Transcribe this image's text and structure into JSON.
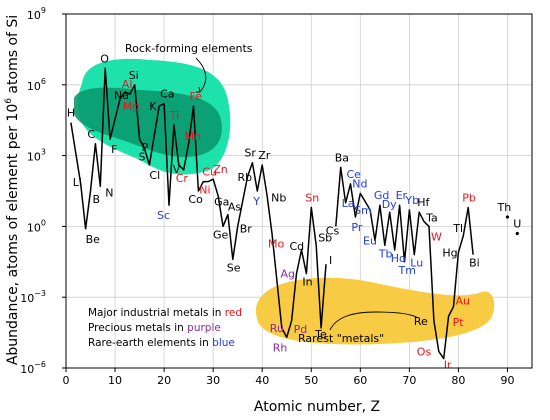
{
  "chart_data": {
    "type": "line",
    "xlabel": "Atomic number, Z",
    "ylabel_parts": {
      "pre": "Abundance, atoms of element per 10",
      "sup": "6",
      "post": " atoms of Si"
    },
    "xlim": [
      0,
      95
    ],
    "ylim_exp": [
      -6,
      9
    ],
    "x_ticks": [
      0,
      10,
      20,
      30,
      40,
      50,
      60,
      70,
      80,
      90
    ],
    "y_ticks": [
      {
        "exp": 9,
        "label": "10",
        "sup": "9"
      },
      {
        "exp": 6,
        "label": "10",
        "sup": "6"
      },
      {
        "exp": 3,
        "label": "10",
        "sup": "3"
      },
      {
        "exp": 0,
        "label": "10",
        "sup": "0"
      },
      {
        "exp": -3,
        "label": "10",
        "sup": "−3"
      },
      {
        "exp": -6,
        "label": "10",
        "sup": "−6"
      }
    ],
    "grid": true,
    "annotations": {
      "rock": "Rock-forming elements",
      "rarest": "Rarest \"metals\""
    },
    "legend": [
      {
        "text": "Major industrial metals in ",
        "highlight": "red",
        "color": "#e8141c"
      },
      {
        "text": "Precious metals in ",
        "highlight": "purple",
        "color": "#8b2a9e"
      },
      {
        "text": "Rare-earth elements in ",
        "highlight": "blue",
        "color": "#1f3fd8"
      }
    ],
    "colors": {
      "black": "#000000",
      "red": "#e8141c",
      "purple": "#8b2a9e",
      "blue": "#1f3fd8",
      "rock_light": "#12e0a6",
      "rock_dark": "#0a9a6e",
      "rarest_fill": "#f7c83a",
      "grid": "#cfcfcf"
    },
    "series": [
      {
        "points": [
          [
            1,
            4.4
          ],
          [
            3,
            1.8
          ],
          [
            4,
            -0.1
          ],
          [
            5,
            1.5
          ],
          [
            6,
            3.5
          ],
          [
            7,
            1.7
          ],
          [
            8,
            6.7
          ],
          [
            9,
            3.7
          ],
          [
            11,
            5.4
          ],
          [
            12,
            5.7
          ],
          [
            13,
            5.6
          ],
          [
            14,
            6.0
          ],
          [
            15,
            3.7
          ],
          [
            16,
            3.3
          ],
          [
            17,
            2.6
          ],
          [
            19,
            5.1
          ],
          [
            20,
            5.2
          ],
          [
            21,
            0.9
          ],
          [
            22,
            4.3
          ],
          [
            23,
            2.6
          ],
          [
            24,
            2.4
          ],
          [
            25,
            3.5
          ],
          [
            26,
            5.1
          ],
          [
            27,
            1.5
          ],
          [
            28,
            1.9
          ],
          [
            29,
            1.9
          ],
          [
            30,
            2.0
          ],
          [
            31,
            1.3
          ],
          [
            32,
            0.0
          ],
          [
            33,
            0.5
          ],
          [
            34,
            -1.4
          ],
          [
            35,
            0.0
          ],
          [
            37,
            2.1
          ],
          [
            38,
            2.7
          ],
          [
            39,
            1.5
          ],
          [
            40,
            2.6
          ],
          [
            41,
            1.3
          ],
          [
            42,
            -0.3
          ],
          [
            44,
            -4.3
          ],
          [
            45,
            -4.7
          ],
          [
            46,
            -4.0
          ],
          [
            47,
            -2.0
          ],
          [
            48,
            -1.0
          ],
          [
            49,
            -2.0
          ],
          [
            50,
            0.8
          ],
          [
            51,
            -0.8
          ],
          [
            52,
            -4.3
          ],
          [
            53,
            -1.6
          ]
        ]
      },
      {
        "points": [
          [
            55,
            0.0
          ],
          [
            56,
            2.5
          ],
          [
            57,
            1.0
          ],
          [
            58,
            1.8
          ],
          [
            59,
            0.4
          ],
          [
            60,
            1.4
          ],
          [
            62,
            0.7
          ],
          [
            63,
            -0.6
          ],
          [
            64,
            0.9
          ],
          [
            65,
            -0.8
          ],
          [
            66,
            0.6
          ],
          [
            67,
            -1.0
          ],
          [
            68,
            0.9
          ],
          [
            69,
            -1.5
          ],
          [
            70,
            0.7
          ],
          [
            71,
            -1.2
          ],
          [
            72,
            0.6
          ],
          [
            73,
            0.2
          ],
          [
            74,
            0.0
          ],
          [
            75,
            -4.0
          ],
          [
            76,
            -5.3
          ],
          [
            77,
            -5.6
          ],
          [
            78,
            -3.8
          ],
          [
            79,
            -3.4
          ],
          [
            80,
            -1.1
          ],
          [
            81,
            -0.4
          ],
          [
            82,
            0.8
          ],
          [
            83,
            -1.2
          ]
        ]
      },
      {
        "points": [
          [
            90,
            0.4
          ]
        ]
      },
      {
        "points": [
          [
            92,
            -0.3
          ]
        ]
      }
    ],
    "labels": [
      {
        "sym": "H",
        "z": 1,
        "exp": 4.4,
        "dx": -4,
        "dy": -6,
        "c": "black"
      },
      {
        "sym": "Li",
        "z": 3,
        "exp": 1.8,
        "dx": -8,
        "dy": 2,
        "c": "black"
      },
      {
        "sym": "Be",
        "z": 4,
        "exp": -0.1,
        "dx": 0,
        "dy": 14,
        "c": "black"
      },
      {
        "sym": "B",
        "z": 5,
        "exp": 1.5,
        "dx": 2,
        "dy": 12,
        "c": "black"
      },
      {
        "sym": "C",
        "z": 6,
        "exp": 3.5,
        "dx": -8,
        "dy": -6,
        "c": "black"
      },
      {
        "sym": "N",
        "z": 7,
        "exp": 1.7,
        "dx": 5,
        "dy": 10,
        "c": "black"
      },
      {
        "sym": "O",
        "z": 8,
        "exp": 6.7,
        "dx": -5,
        "dy": -6,
        "c": "black"
      },
      {
        "sym": "F",
        "z": 9,
        "exp": 3.7,
        "dx": 1,
        "dy": 14,
        "c": "black"
      },
      {
        "sym": "Na",
        "z": 11,
        "exp": 5.4,
        "dx": -6,
        "dy": 0,
        "c": "black"
      },
      {
        "sym": "Mg",
        "z": 12,
        "exp": 5.7,
        "dx": -2,
        "dy": 18,
        "c": "red"
      },
      {
        "sym": "Al",
        "z": 13,
        "exp": 5.6,
        "dx": -8,
        "dy": -6,
        "c": "red"
      },
      {
        "sym": "Si",
        "z": 14,
        "exp": 6.0,
        "dx": -6,
        "dy": -6,
        "c": "black"
      },
      {
        "sym": "P",
        "z": 15,
        "exp": 3.7,
        "dx": 2,
        "dy": 12,
        "c": "black"
      },
      {
        "sym": "S",
        "z": 16,
        "exp": 3.3,
        "dx": -6,
        "dy": 12,
        "c": "black"
      },
      {
        "sym": "Cl",
        "z": 17,
        "exp": 2.6,
        "dx": 0,
        "dy": 14,
        "c": "black"
      },
      {
        "sym": "K",
        "z": 19,
        "exp": 5.1,
        "dx": -10,
        "dy": 4,
        "c": "black"
      },
      {
        "sym": "Ca",
        "z": 20,
        "exp": 5.2,
        "dx": -4,
        "dy": -6,
        "c": "black"
      },
      {
        "sym": "Sc",
        "z": 21,
        "exp": 0.9,
        "dx": -12,
        "dy": 14,
        "c": "blue"
      },
      {
        "sym": "Ti",
        "z": 22,
        "exp": 4.3,
        "dx": -4,
        "dy": -6,
        "c": "red"
      },
      {
        "sym": "V",
        "z": 23,
        "exp": 2.6,
        "dx": -6,
        "dy": 8,
        "c": "black"
      },
      {
        "sym": "Cr",
        "z": 24,
        "exp": 2.4,
        "dx": -8,
        "dy": 12,
        "c": "red"
      },
      {
        "sym": "Mn",
        "z": 25,
        "exp": 3.5,
        "dx": -4,
        "dy": -4,
        "c": "red"
      },
      {
        "sym": "Fe",
        "z": 26,
        "exp": 5.1,
        "dx": -4,
        "dy": -6,
        "c": "red"
      },
      {
        "sym": "Co",
        "z": 27,
        "exp": 1.5,
        "dx": -10,
        "dy": 12,
        "c": "black"
      },
      {
        "sym": "Ni",
        "z": 28,
        "exp": 1.9,
        "dx": -4,
        "dy": 12,
        "c": "red"
      },
      {
        "sym": "Cu",
        "z": 29,
        "exp": 1.9,
        "dx": -6,
        "dy": -6,
        "c": "red"
      },
      {
        "sym": "Zn",
        "z": 30,
        "exp": 2.0,
        "dx": 0,
        "dy": -6,
        "c": "red"
      },
      {
        "sym": "Ga",
        "z": 31,
        "exp": 1.3,
        "dx": -4,
        "dy": 10,
        "c": "black"
      },
      {
        "sym": "Ge",
        "z": 32,
        "exp": 0.0,
        "dx": -10,
        "dy": 12,
        "c": "black"
      },
      {
        "sym": "As",
        "z": 33,
        "exp": 0.5,
        "dx": 0,
        "dy": -4,
        "c": "black"
      },
      {
        "sym": "Se",
        "z": 34,
        "exp": -1.4,
        "dx": -6,
        "dy": 12,
        "c": "black"
      },
      {
        "sym": "Br",
        "z": 35,
        "exp": 0.0,
        "dx": 2,
        "dy": 6,
        "c": "black"
      },
      {
        "sym": "Rb",
        "z": 37,
        "exp": 2.1,
        "dx": -10,
        "dy": 4,
        "c": "black"
      },
      {
        "sym": "Sr",
        "z": 38,
        "exp": 2.7,
        "dx": -8,
        "dy": -6,
        "c": "black"
      },
      {
        "sym": "Y",
        "z": 39,
        "exp": 1.5,
        "dx": -4,
        "dy": 14,
        "c": "blue"
      },
      {
        "sym": "Zr",
        "z": 40,
        "exp": 2.6,
        "dx": -4,
        "dy": -6,
        "c": "black"
      },
      {
        "sym": "Nb",
        "z": 41,
        "exp": 1.3,
        "dx": 4,
        "dy": 6,
        "c": "black"
      },
      {
        "sym": "Mo",
        "z": 42,
        "exp": -0.3,
        "dx": -4,
        "dy": 14,
        "c": "red"
      },
      {
        "sym": "Ru",
        "z": 44,
        "exp": -4.3,
        "dx": -12,
        "dy": 4,
        "c": "purple"
      },
      {
        "sym": "Rh",
        "z": 45,
        "exp": -4.7,
        "dx": -14,
        "dy": 14,
        "c": "purple"
      },
      {
        "sym": "Pd",
        "z": 46,
        "exp": -4.0,
        "dx": 2,
        "dy": 12,
        "c": "purple"
      },
      {
        "sym": "Ag",
        "z": 47,
        "exp": -2.0,
        "dx": -16,
        "dy": 4,
        "c": "purple"
      },
      {
        "sym": "Cd",
        "z": 48,
        "exp": -1.0,
        "dx": -12,
        "dy": 0,
        "c": "black"
      },
      {
        "sym": "In",
        "z": 49,
        "exp": -2.0,
        "dx": -4,
        "dy": 12,
        "c": "black"
      },
      {
        "sym": "Sn",
        "z": 50,
        "exp": 0.8,
        "dx": -6,
        "dy": -6,
        "c": "red"
      },
      {
        "sym": "Sb",
        "z": 51,
        "exp": -0.8,
        "dx": 2,
        "dy": -4,
        "c": "black"
      },
      {
        "sym": "Te",
        "z": 52,
        "exp": -4.3,
        "dx": -6,
        "dy": 10,
        "c": "black"
      },
      {
        "sym": "I",
        "z": 53,
        "exp": -1.6,
        "dx": 3,
        "dy": 0,
        "c": "black"
      },
      {
        "sym": "Cs",
        "z": 55,
        "exp": 0.0,
        "dx": -10,
        "dy": 8,
        "c": "black"
      },
      {
        "sym": "Ba",
        "z": 56,
        "exp": 2.5,
        "dx": -6,
        "dy": -6,
        "c": "black"
      },
      {
        "sym": "La",
        "z": 57,
        "exp": 1.0,
        "dx": -4,
        "dy": 4,
        "c": "blue"
      },
      {
        "sym": "Ce",
        "z": 58,
        "exp": 1.8,
        "dx": -4,
        "dy": -6,
        "c": "blue"
      },
      {
        "sym": "Pr",
        "z": 59,
        "exp": 0.4,
        "dx": -4,
        "dy": 14,
        "c": "blue"
      },
      {
        "sym": "Nd",
        "z": 60,
        "exp": 1.4,
        "dx": -8,
        "dy": -6,
        "c": "blue"
      },
      {
        "sym": "Sm",
        "z": 62,
        "exp": 0.7,
        "dx": -16,
        "dy": 4,
        "c": "blue"
      },
      {
        "sym": "Eu",
        "z": 63,
        "exp": -0.6,
        "dx": -12,
        "dy": 4,
        "c": "blue"
      },
      {
        "sym": "Gd",
        "z": 64,
        "exp": 0.9,
        "dx": -6,
        "dy": -6,
        "c": "blue"
      },
      {
        "sym": "Tb",
        "z": 65,
        "exp": -0.8,
        "dx": -6,
        "dy": 12,
        "c": "blue"
      },
      {
        "sym": "Dy",
        "z": 66,
        "exp": 0.6,
        "dx": -8,
        "dy": -4,
        "c": "blue"
      },
      {
        "sym": "Ho",
        "z": 67,
        "exp": -1.0,
        "dx": -4,
        "dy": 12,
        "c": "blue"
      },
      {
        "sym": "Er",
        "z": 68,
        "exp": 0.9,
        "dx": -4,
        "dy": -6,
        "c": "blue"
      },
      {
        "sym": "Tm",
        "z": 69,
        "exp": -1.5,
        "dx": -6,
        "dy": 12,
        "c": "blue"
      },
      {
        "sym": "Yb",
        "z": 70,
        "exp": 0.7,
        "dx": -4,
        "dy": -6,
        "c": "blue"
      },
      {
        "sym": "Lu",
        "z": 71,
        "exp": -1.2,
        "dx": -4,
        "dy": 12,
        "c": "blue"
      },
      {
        "sym": "Hf",
        "z": 72,
        "exp": 0.6,
        "dx": -2,
        "dy": -6,
        "c": "black"
      },
      {
        "sym": "Ta",
        "z": 73,
        "exp": 0.2,
        "dx": 2,
        "dy": 0,
        "c": "black"
      },
      {
        "sym": "W",
        "z": 74,
        "exp": 0.0,
        "dx": 2,
        "dy": 14,
        "c": "red"
      },
      {
        "sym": "Re",
        "z": 75,
        "exp": -4.0,
        "dx": -20,
        "dy": 4,
        "c": "black"
      },
      {
        "sym": "Os",
        "z": 76,
        "exp": -5.3,
        "dx": -22,
        "dy": 4,
        "c": "red"
      },
      {
        "sym": "Ir",
        "z": 77,
        "exp": -5.6,
        "dx": 0,
        "dy": 10,
        "c": "red"
      },
      {
        "sym": "Pt",
        "z": 78,
        "exp": -3.8,
        "dx": 4,
        "dy": 10,
        "c": "red"
      },
      {
        "sym": "Au",
        "z": 79,
        "exp": -3.4,
        "dx": 2,
        "dy": -2,
        "c": "red"
      },
      {
        "sym": "Hg",
        "z": 80,
        "exp": -1.1,
        "dx": -16,
        "dy": 4,
        "c": "black"
      },
      {
        "sym": "Tl",
        "z": 81,
        "exp": -0.4,
        "dx": -10,
        "dy": -4,
        "c": "black"
      },
      {
        "sym": "Pb",
        "z": 82,
        "exp": 0.8,
        "dx": -6,
        "dy": -6,
        "c": "red"
      },
      {
        "sym": "Bi",
        "z": 83,
        "exp": -1.2,
        "dx": -4,
        "dy": 12,
        "c": "black"
      },
      {
        "sym": "Th",
        "z": 90,
        "exp": 0.4,
        "dx": -10,
        "dy": -6,
        "c": "black"
      },
      {
        "sym": "U",
        "z": 92,
        "exp": -0.3,
        "dx": -4,
        "dy": -6,
        "c": "black"
      }
    ]
  }
}
